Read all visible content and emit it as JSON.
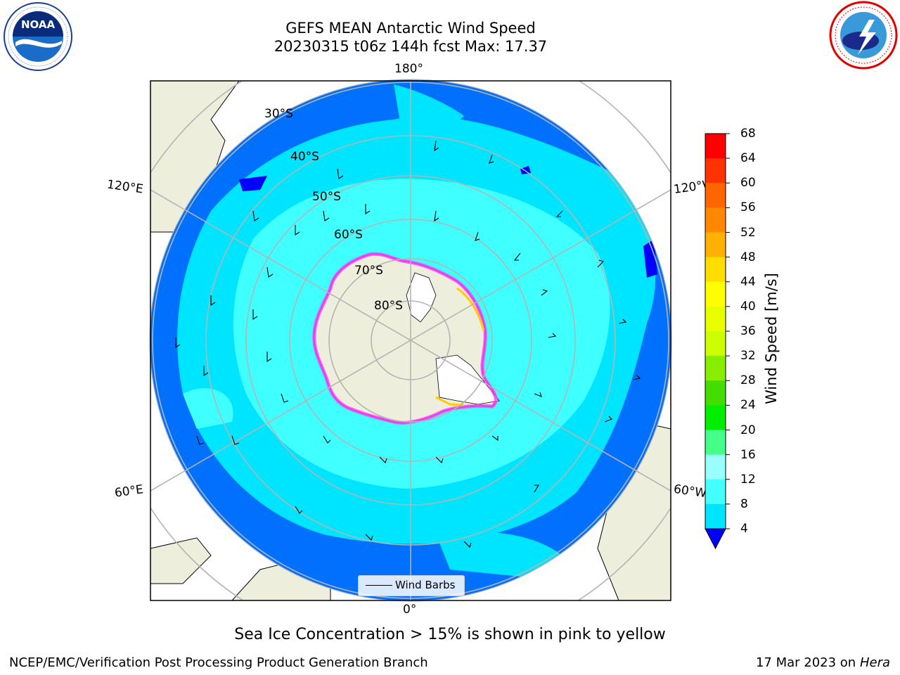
{
  "title": {
    "line1": "GEFS MEAN Antarctic Wind Speed",
    "line2": "20230315 t06z 144h fcst   Max: 17.37"
  },
  "logos": {
    "left": "NOAA",
    "left_ring": "NATIONAL OCEANIC AND ATMOSPHERIC ADMINISTRATION · U.S. DEPARTMENT OF COMMERCE",
    "right_ring": "NATIONAL WEATHER SERVICE"
  },
  "map": {
    "lon_labels": {
      "top": "180°",
      "bottom": "0°",
      "upper_left": "120°E",
      "lower_left": "60°E",
      "upper_right": "120°W",
      "lower_right": "60°W"
    },
    "lat_labels": [
      "30°S",
      "40°S",
      "50°S",
      "60°S",
      "70°S",
      "80°S"
    ],
    "legend_label": "Wind Barbs",
    "colors": {
      "ocean_dark": "#0070ff",
      "ocean_mid": "#00e5ff",
      "ocean_light": "#40ffff",
      "land": "#eeeedc",
      "sea_ice": "#ff40ff",
      "gridline": "#b4b4b4"
    }
  },
  "colorbar": {
    "label": "Wind Speed [m/s]",
    "ticks": [
      "68",
      "64",
      "60",
      "56",
      "52",
      "48",
      "44",
      "40",
      "36",
      "32",
      "28",
      "24",
      "20",
      "16",
      "12",
      "8",
      "4"
    ],
    "colors": [
      "#ff0000",
      "#ff3300",
      "#ff6600",
      "#ff8800",
      "#ffb000",
      "#ffdd00",
      "#ffff00",
      "#e8ff00",
      "#ccff00",
      "#88ee00",
      "#44dd00",
      "#00ee00",
      "#44ff88",
      "#99ffff",
      "#44ffff",
      "#00e5ff",
      "#0070ff"
    ],
    "under_color": "#0000ff"
  },
  "caption": "Sea Ice Concentration > 15% is shown in pink to yellow",
  "footer": {
    "left": "NCEP/EMC/Verification Post Processing Product Generation Branch",
    "right_date": "17 Mar 2023 on",
    "right_machine": "Hera"
  }
}
